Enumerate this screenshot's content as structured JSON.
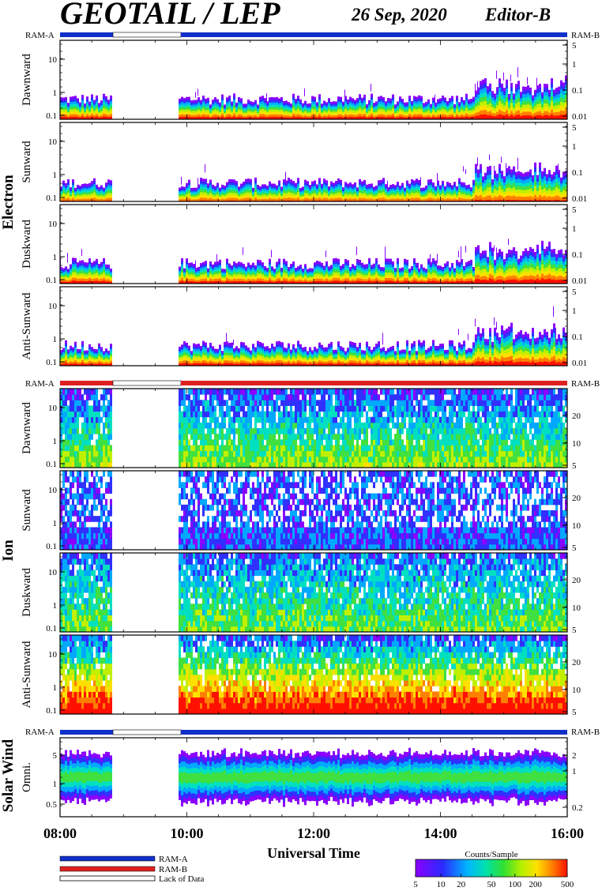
{
  "header": {
    "title": "GEOTAIL / LEP",
    "date": "26 Sep, 2020",
    "editor": "Editor-B"
  },
  "colors": {
    "ram_a": "#1030c8",
    "ram_b": "#e02020",
    "lack_of_data": "#ffffff"
  },
  "legend": {
    "ram_a": "RAM-A",
    "ram_b": "RAM-B",
    "lack": "Lack of Data"
  },
  "colorbar": {
    "title": "Counts/Sample",
    "ticks": [
      "5",
      "10",
      "20",
      "50",
      "100",
      "200",
      "500"
    ]
  },
  "xaxis": {
    "title": "Universal Time",
    "ticks": [
      "08:00",
      "10:00",
      "12:00",
      "14:00",
      "16:00"
    ]
  },
  "groups": {
    "electron": "Electron",
    "ion": "Ion",
    "solar_wind": "Solar Wind"
  },
  "mode_labels": {
    "electron_left": "RAM-A",
    "electron_right": "RAM-B",
    "ion_left": "RAM-A",
    "ion_right": "RAM-B",
    "sw_left": "RAM-A",
    "sw_right": "RAM-B"
  },
  "chart_data": {
    "type": "heatmap",
    "x_range": [
      "08:00",
      "16:00"
    ],
    "data_gap": [
      "08:50",
      "09:52"
    ],
    "panels": [
      {
        "group": "Electron",
        "name": "Dawnward",
        "left_ticks": [
          "10",
          "1",
          "0.1"
        ],
        "right_ticks": [
          "5",
          "1",
          "0.1",
          "0.01"
        ]
      },
      {
        "group": "Electron",
        "name": "Sunward",
        "left_ticks": [
          "10",
          "1",
          "0.1"
        ],
        "right_ticks": [
          "5",
          "1",
          "0.1",
          "0.01"
        ]
      },
      {
        "group": "Electron",
        "name": "Duskward",
        "left_ticks": [
          "10",
          "1",
          "0.1"
        ],
        "right_ticks": [
          "5",
          "1",
          "0.1",
          "0.01"
        ]
      },
      {
        "group": "Electron",
        "name": "Anti-Sunward",
        "left_ticks": [
          "10",
          "1",
          "0.1"
        ],
        "right_ticks": [
          "5",
          "1",
          "0.1",
          "0.01"
        ]
      },
      {
        "group": "Ion",
        "name": "Dawnward",
        "left_ticks": [
          "10",
          "1",
          "0.1"
        ],
        "right_ticks": [
          "20",
          "10",
          "5"
        ]
      },
      {
        "group": "Ion",
        "name": "Sunward",
        "left_ticks": [
          "10",
          "1",
          "0.1"
        ],
        "right_ticks": [
          "20",
          "10",
          "5"
        ]
      },
      {
        "group": "Ion",
        "name": "Duskward",
        "left_ticks": [
          "10",
          "1",
          "0.1"
        ],
        "right_ticks": [
          "20",
          "10",
          "5"
        ]
      },
      {
        "group": "Ion",
        "name": "Anti-Sunward",
        "left_ticks": [
          "10",
          "1",
          "0.1"
        ],
        "right_ticks": [
          "20",
          "10",
          "5"
        ]
      },
      {
        "group": "Solar Wind",
        "name": "Omni.",
        "left_ticks": [
          "5",
          "1",
          "0.5"
        ],
        "right_ticks": [
          "2",
          "1",
          "0.2"
        ]
      }
    ]
  }
}
